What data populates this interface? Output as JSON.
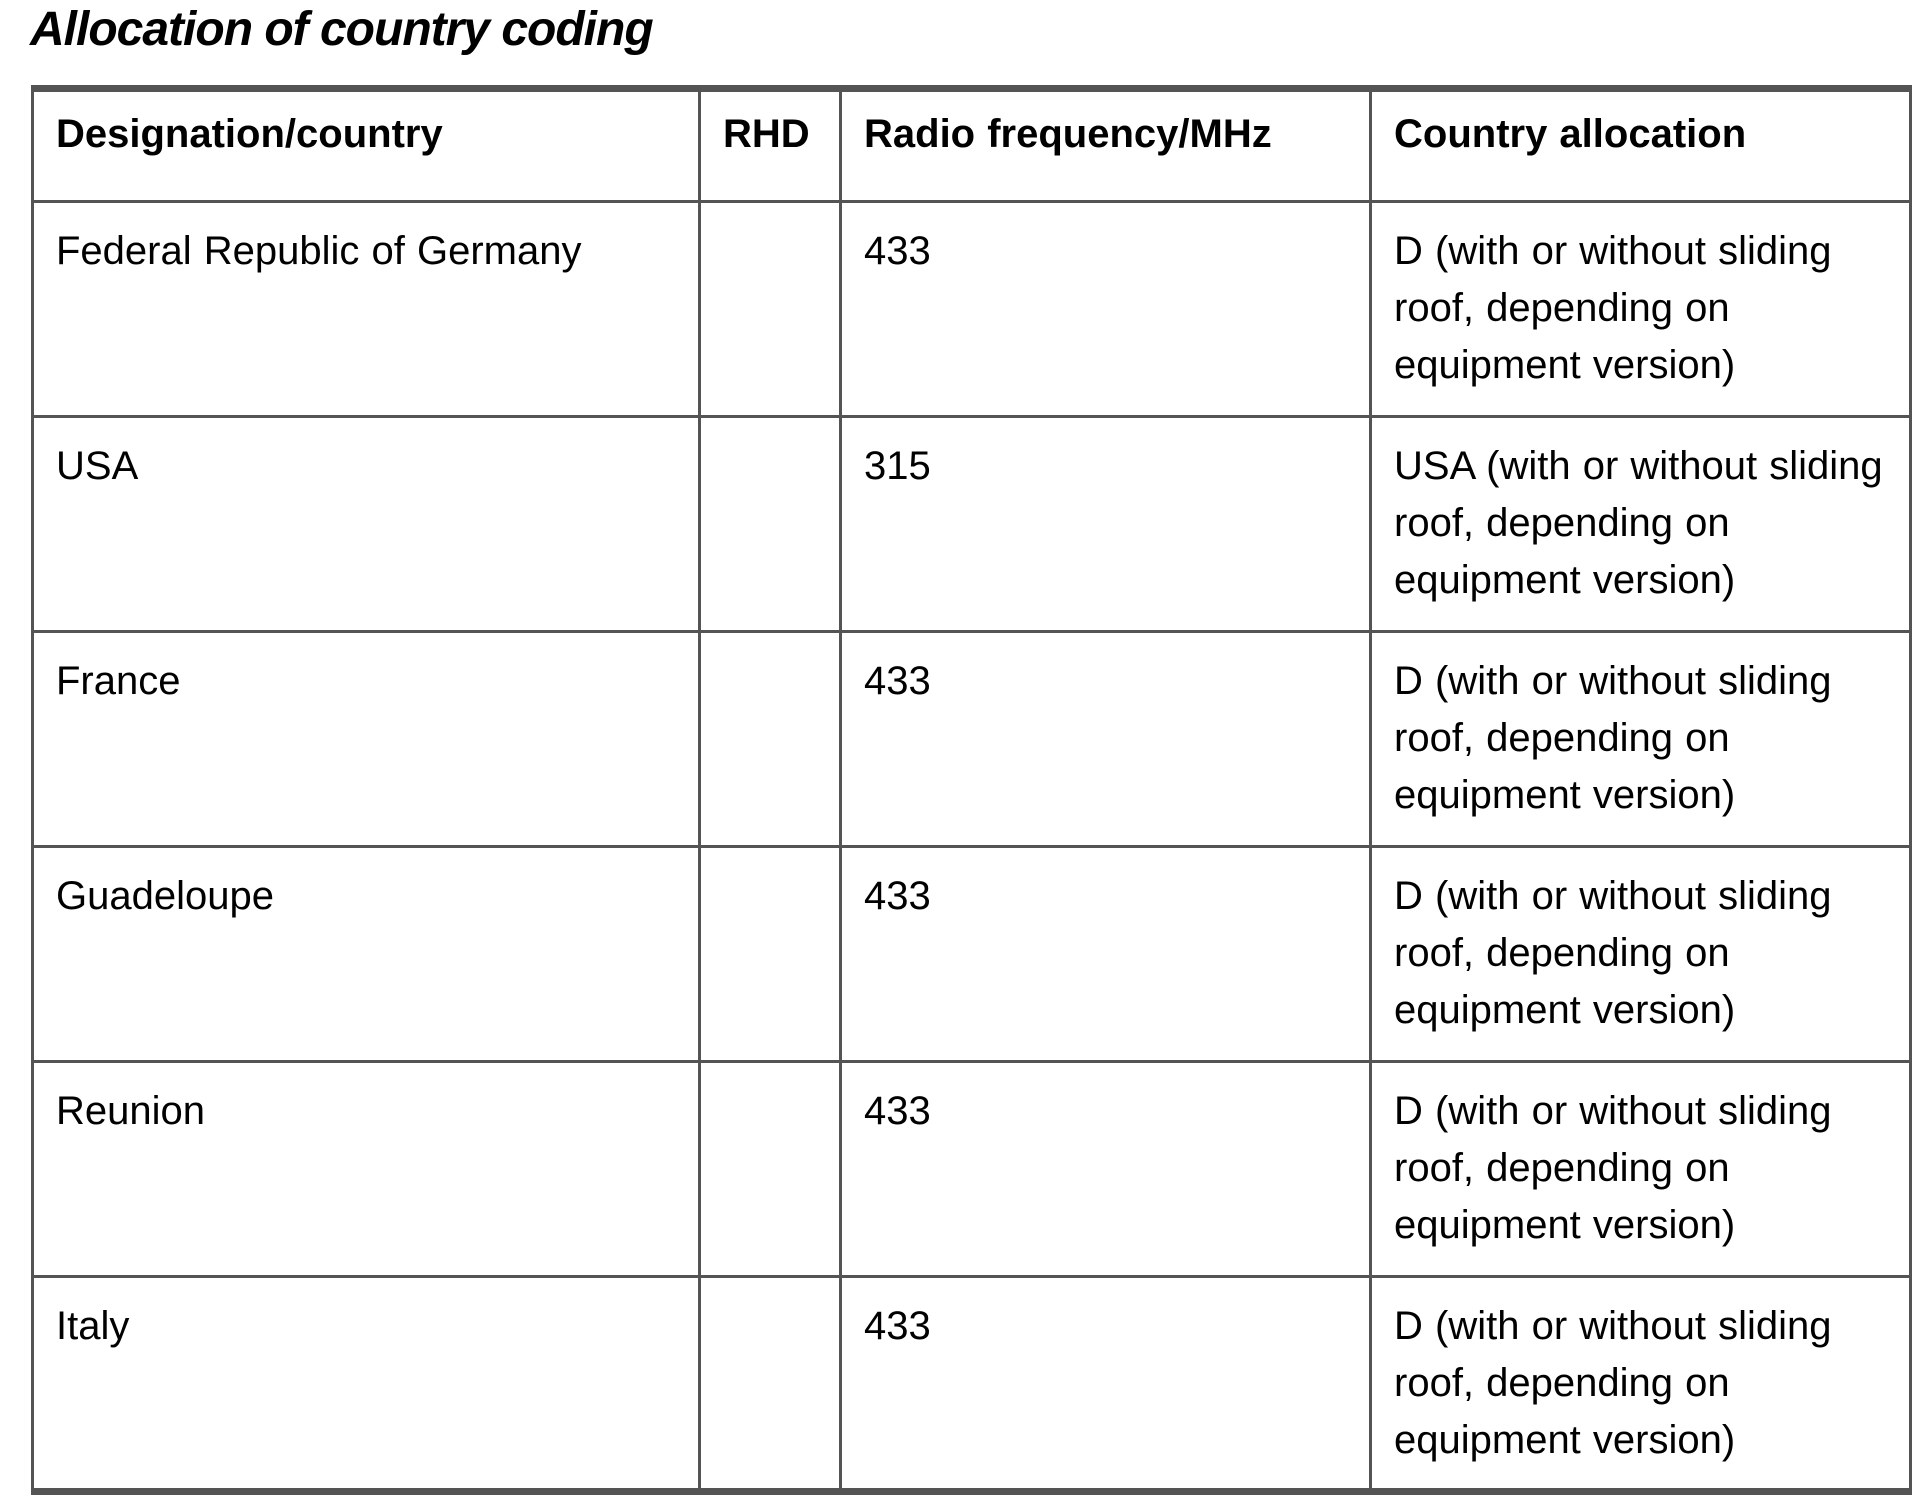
{
  "title": "Allocation of country coding",
  "colors": {
    "border": "#545454",
    "text": "#000000",
    "background": "#ffffff"
  },
  "table": {
    "headers": [
      "Designation/country",
      "RHD",
      "Radio frequency/MHz",
      "Country allocation"
    ],
    "rows": [
      {
        "country": "Federal Republic of Germany",
        "rhd": "",
        "frequency": "433",
        "allocation": "D (with or without sliding roof, depending on equipment version)"
      },
      {
        "country": "USA",
        "rhd": "",
        "frequency": "315",
        "allocation": "USA (with or without sliding roof, depending on equipment version)"
      },
      {
        "country": "France",
        "rhd": "",
        "frequency": "433",
        "allocation": "D (with or without sliding roof, depending on equipment version)"
      },
      {
        "country": "Guadeloupe",
        "rhd": "",
        "frequency": "433",
        "allocation": "D (with or without sliding roof, depending on equipment version)"
      },
      {
        "country": "Reunion",
        "rhd": "",
        "frequency": "433",
        "allocation": "D (with or without sliding roof, depending on equipment version)"
      },
      {
        "country": "Italy",
        "rhd": "",
        "frequency": "433",
        "allocation": "D (with or without sliding roof, depending on equipment version)"
      }
    ]
  }
}
